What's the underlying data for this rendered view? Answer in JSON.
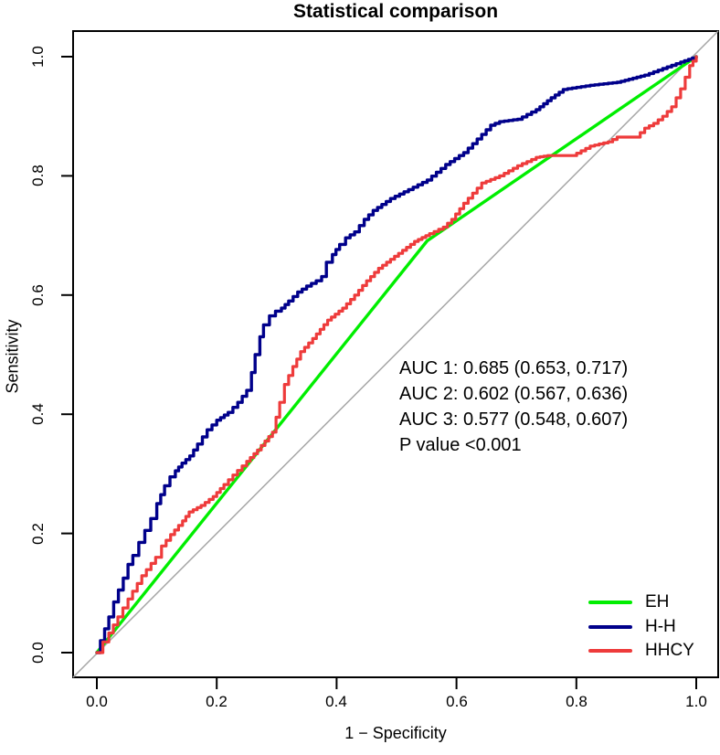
{
  "chart_data": {
    "type": "line",
    "title": "Statistical comparison",
    "xlabel": "1 − Specificity",
    "ylabel": "Sensitivity",
    "xlim": [
      0,
      1
    ],
    "ylim": [
      0,
      1
    ],
    "grid": false,
    "legend_position": "bottom-right",
    "x_tick_values": [
      0,
      0.2,
      0.4,
      0.6,
      0.8,
      1.0
    ],
    "y_tick_values": [
      0,
      0.2,
      0.4,
      0.6,
      0.8,
      1.0
    ],
    "x_ticks": [
      "0.0",
      "0.2",
      "0.4",
      "0.6",
      "0.8",
      "1.0"
    ],
    "y_ticks": [
      "0.0",
      "0.2",
      "0.4",
      "0.6",
      "0.8",
      "1.0"
    ],
    "reference_line": {
      "from": [
        0,
        0
      ],
      "to": [
        1,
        1
      ],
      "color": "#A6A6A6",
      "width": 1.5
    },
    "axis_color": "#000000",
    "series": [
      {
        "name": "EH",
        "color": "#00EE00",
        "style": "line",
        "width": 3.4,
        "points": [
          [
            0,
            0
          ],
          [
            0.551,
            0.691
          ],
          [
            1,
            1
          ]
        ]
      },
      {
        "name": "H-H",
        "color": "#00008B",
        "style": "step",
        "width": 3.4,
        "points": [
          [
            0,
            0
          ],
          [
            0.006,
            0.02
          ],
          [
            0.013,
            0.04
          ],
          [
            0.02,
            0.06
          ],
          [
            0.028,
            0.085
          ],
          [
            0.036,
            0.105
          ],
          [
            0.044,
            0.125
          ],
          [
            0.052,
            0.148
          ],
          [
            0.06,
            0.163
          ],
          [
            0.07,
            0.185
          ],
          [
            0.08,
            0.205
          ],
          [
            0.09,
            0.225
          ],
          [
            0.1,
            0.25
          ],
          [
            0.113,
            0.28
          ],
          [
            0.122,
            0.295
          ],
          [
            0.131,
            0.305
          ],
          [
            0.142,
            0.318
          ],
          [
            0.155,
            0.33
          ],
          [
            0.168,
            0.35
          ],
          [
            0.184,
            0.374
          ],
          [
            0.2,
            0.39
          ],
          [
            0.219,
            0.403
          ],
          [
            0.235,
            0.42
          ],
          [
            0.25,
            0.44
          ],
          [
            0.258,
            0.47
          ],
          [
            0.264,
            0.5
          ],
          [
            0.272,
            0.53
          ],
          [
            0.278,
            0.55
          ],
          [
            0.288,
            0.565
          ],
          [
            0.298,
            0.573
          ],
          [
            0.308,
            0.578
          ],
          [
            0.32,
            0.59
          ],
          [
            0.335,
            0.605
          ],
          [
            0.35,
            0.615
          ],
          [
            0.366,
            0.624
          ],
          [
            0.375,
            0.631
          ],
          [
            0.383,
            0.655
          ],
          [
            0.393,
            0.668
          ],
          [
            0.405,
            0.685
          ],
          [
            0.415,
            0.696
          ],
          [
            0.43,
            0.706
          ],
          [
            0.446,
            0.727
          ],
          [
            0.461,
            0.742
          ],
          [
            0.49,
            0.762
          ],
          [
            0.52,
            0.777
          ],
          [
            0.551,
            0.793
          ],
          [
            0.582,
            0.819
          ],
          [
            0.612,
            0.839
          ],
          [
            0.627,
            0.854
          ],
          [
            0.657,
            0.885
          ],
          [
            0.672,
            0.891
          ],
          [
            0.702,
            0.895
          ],
          [
            0.733,
            0.911
          ],
          [
            0.758,
            0.931
          ],
          [
            0.778,
            0.945
          ],
          [
            0.823,
            0.952
          ],
          [
            0.868,
            0.957
          ],
          [
            0.914,
            0.969
          ],
          [
            0.944,
            0.98
          ],
          [
            0.974,
            0.991
          ],
          [
            1,
            1
          ]
        ]
      },
      {
        "name": "HHCY",
        "color": "#EE3B3B",
        "style": "step",
        "width": 3.2,
        "points": [
          [
            0,
            0
          ],
          [
            0.01,
            0.018
          ],
          [
            0.02,
            0.033
          ],
          [
            0.035,
            0.06
          ],
          [
            0.052,
            0.09
          ],
          [
            0.075,
            0.129
          ],
          [
            0.098,
            0.16
          ],
          [
            0.108,
            0.179
          ],
          [
            0.123,
            0.198
          ],
          [
            0.143,
            0.221
          ],
          [
            0.154,
            0.236
          ],
          [
            0.174,
            0.247
          ],
          [
            0.194,
            0.262
          ],
          [
            0.212,
            0.282
          ],
          [
            0.227,
            0.298
          ],
          [
            0.25,
            0.321
          ],
          [
            0.268,
            0.34
          ],
          [
            0.293,
            0.37
          ],
          [
            0.305,
            0.42
          ],
          [
            0.313,
            0.45
          ],
          [
            0.327,
            0.48
          ],
          [
            0.34,
            0.505
          ],
          [
            0.36,
            0.527
          ],
          [
            0.385,
            0.558
          ],
          [
            0.41,
            0.578
          ],
          [
            0.43,
            0.6
          ],
          [
            0.45,
            0.624
          ],
          [
            0.47,
            0.645
          ],
          [
            0.49,
            0.66
          ],
          [
            0.51,
            0.675
          ],
          [
            0.53,
            0.69
          ],
          [
            0.555,
            0.703
          ],
          [
            0.578,
            0.714
          ],
          [
            0.592,
            0.727
          ],
          [
            0.612,
            0.754
          ],
          [
            0.642,
            0.788
          ],
          [
            0.672,
            0.8
          ],
          [
            0.702,
            0.817
          ],
          [
            0.733,
            0.831
          ],
          [
            0.752,
            0.834
          ],
          [
            0.793,
            0.834
          ],
          [
            0.823,
            0.85
          ],
          [
            0.853,
            0.857
          ],
          [
            0.868,
            0.865
          ],
          [
            0.899,
            0.865
          ],
          [
            0.914,
            0.88
          ],
          [
            0.929,
            0.888
          ],
          [
            0.944,
            0.9
          ],
          [
            0.959,
            0.916
          ],
          [
            0.974,
            0.946
          ],
          [
            0.989,
            0.985
          ],
          [
            1,
            1
          ]
        ]
      }
    ],
    "annotation": {
      "lines": [
        "AUC 1: 0.685 (0.653, 0.717)",
        "AUC 2: 0.602 (0.567, 0.636)",
        "AUC 3: 0.577 (0.548, 0.607)",
        "P value <0.001"
      ]
    },
    "legend": {
      "items": [
        {
          "label": "EH",
          "color": "#00EE00"
        },
        {
          "label": "H-H",
          "color": "#00008B"
        },
        {
          "label": "HHCY",
          "color": "#EE3B3B"
        }
      ]
    }
  }
}
